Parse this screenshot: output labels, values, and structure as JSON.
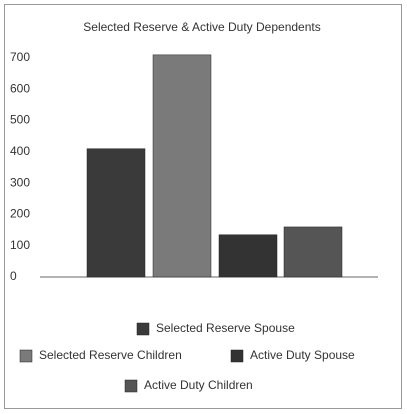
{
  "chart_data": {
    "type": "bar",
    "title": "Selected Reserve & Active Duty Dependents",
    "series": [
      {
        "name": "Selected Reserve Spouse",
        "color": "#3a3a3a",
        "values": [
          410
        ]
      },
      {
        "name": "Selected Reserve Children",
        "color": "#7a7a7a",
        "values": [
          710
        ]
      },
      {
        "name": "Active Duty Spouse",
        "color": "#333333",
        "values": [
          135
        ]
      },
      {
        "name": "Active Duty Children",
        "color": "#555555",
        "values": [
          160
        ]
      }
    ],
    "ylim": [
      0,
      700
    ],
    "yticks": [
      0,
      100,
      200,
      300,
      400,
      500,
      600,
      700
    ],
    "grid": false
  }
}
